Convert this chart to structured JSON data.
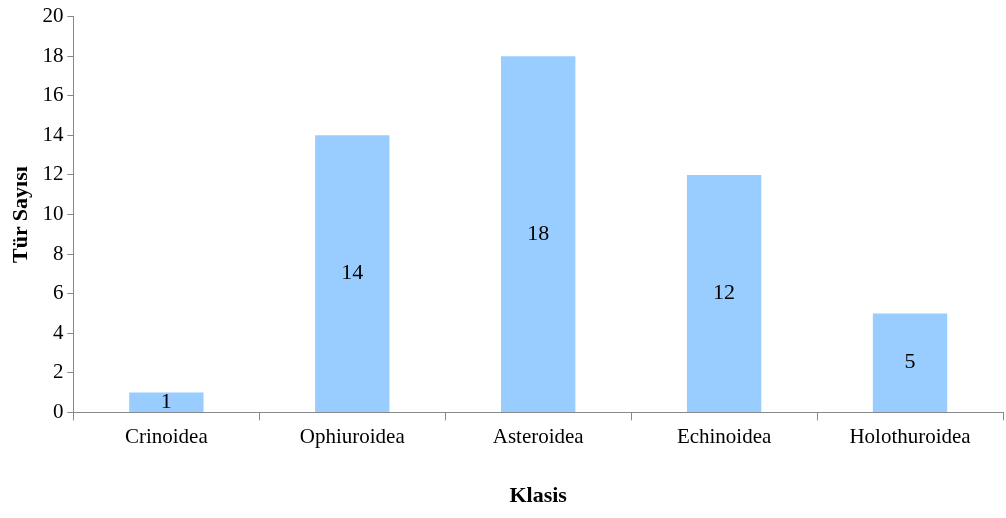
{
  "chart_data": {
    "type": "bar",
    "xlabel": "Klasis",
    "ylabel": "Tür Sayısı",
    "categories": [
      "Crinoidea",
      "Ophiuroidea",
      "Asteroidea",
      "Echinoidea",
      "Holothuroidea"
    ],
    "values": [
      1,
      14,
      18,
      12,
      5
    ],
    "color": "#99ccff",
    "ylim": [
      0,
      20
    ],
    "yticks": [
      0,
      2,
      4,
      6,
      8,
      10,
      12,
      14,
      16,
      18,
      20
    ],
    "data_labels": true,
    "legend": false
  }
}
